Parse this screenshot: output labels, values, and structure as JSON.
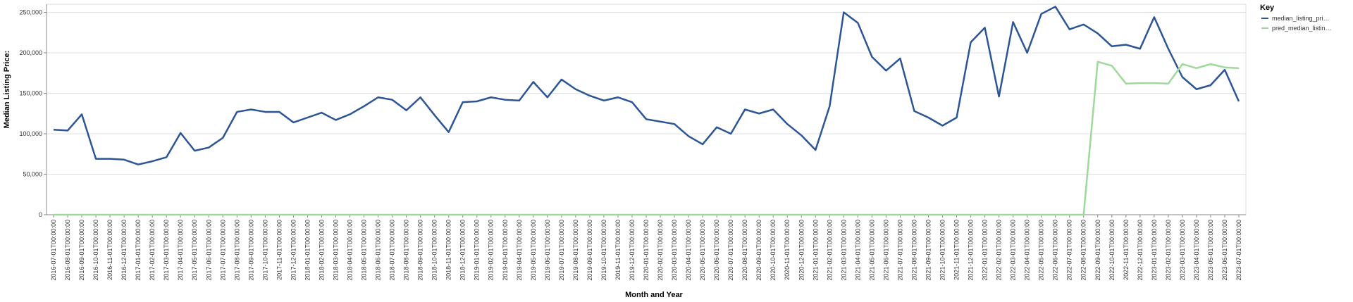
{
  "chart_data": {
    "type": "line",
    "x_label": "Month and Year",
    "y_label": "Median Listing Price:",
    "legend_title": "Key",
    "legend_position": "right",
    "grid": true,
    "categories": [
      "2016-07-01T00:00:00",
      "2016-08-01T00:00:00",
      "2016-09-01T00:00:00",
      "2016-10-01T00:00:00",
      "2016-11-01T00:00:00",
      "2016-12-01T00:00:00",
      "2017-01-01T00:00:00",
      "2017-02-01T00:00:00",
      "2017-03-01T00:00:00",
      "2017-04-01T00:00:00",
      "2017-05-01T00:00:00",
      "2017-06-01T00:00:00",
      "2017-07-01T00:00:00",
      "2017-08-01T00:00:00",
      "2017-09-01T00:00:00",
      "2017-10-01T00:00:00",
      "2017-11-01T00:00:00",
      "2017-12-01T00:00:00",
      "2018-01-01T00:00:00",
      "2018-02-01T00:00:00",
      "2018-03-01T00:00:00",
      "2018-04-01T00:00:00",
      "2018-05-01T00:00:00",
      "2018-06-01T00:00:00",
      "2018-07-01T00:00:00",
      "2018-08-01T00:00:00",
      "2018-09-01T00:00:00",
      "2018-10-01T00:00:00",
      "2018-11-01T00:00:00",
      "2018-12-01T00:00:00",
      "2019-01-01T00:00:00",
      "2019-02-01T00:00:00",
      "2019-03-01T00:00:00",
      "2019-04-01T00:00:00",
      "2019-05-01T00:00:00",
      "2019-06-01T00:00:00",
      "2019-07-01T00:00:00",
      "2019-08-01T00:00:00",
      "2019-09-01T00:00:00",
      "2019-10-01T00:00:00",
      "2019-11-01T00:00:00",
      "2019-12-01T00:00:00",
      "2020-01-01T00:00:00",
      "2020-02-01T00:00:00",
      "2020-03-01T00:00:00",
      "2020-04-01T00:00:00",
      "2020-05-01T00:00:00",
      "2020-06-01T00:00:00",
      "2020-07-01T00:00:00",
      "2020-08-01T00:00:00",
      "2020-09-01T00:00:00",
      "2020-10-01T00:00:00",
      "2020-11-01T00:00:00",
      "2020-12-01T00:00:00",
      "2021-01-01T00:00:00",
      "2021-02-01T00:00:00",
      "2021-03-01T00:00:00",
      "2021-04-01T00:00:00",
      "2021-05-01T00:00:00",
      "2021-06-01T00:00:00",
      "2021-07-01T00:00:00",
      "2021-08-01T00:00:00",
      "2021-09-01T00:00:00",
      "2021-10-01T00:00:00",
      "2021-11-01T00:00:00",
      "2021-12-01T00:00:00",
      "2022-01-01T00:00:00",
      "2022-02-01T00:00:00",
      "2022-03-01T00:00:00",
      "2022-04-01T00:00:00",
      "2022-05-01T00:00:00",
      "2022-06-01T00:00:00",
      "2022-07-01T00:00:00",
      "2022-08-01T00:00:00",
      "2022-09-01T00:00:00",
      "2022-10-01T00:00:00",
      "2022-11-01T00:00:00",
      "2022-12-01T00:00:00",
      "2023-01-01T00:00:00",
      "2023-02-01T00:00:00",
      "2023-03-01T00:00:00",
      "2023-04-01T00:00:00",
      "2023-05-01T00:00:00",
      "2023-06-01T00:00:00",
      "2023-07-01T00:00:00"
    ],
    "series": [
      {
        "name": "median_listing_pri…",
        "color": "#2c5596",
        "values": [
          105000,
          104000,
          124000,
          69000,
          69000,
          68000,
          62000,
          66000,
          71000,
          101000,
          79000,
          83000,
          95000,
          127000,
          130000,
          127000,
          127000,
          114000,
          120000,
          126000,
          117000,
          124000,
          134000,
          145000,
          142000,
          129000,
          145000,
          123000,
          102000,
          139000,
          140000,
          145000,
          142000,
          141000,
          164000,
          145000,
          167000,
          155000,
          147000,
          141000,
          145000,
          139000,
          118000,
          115000,
          112000,
          97000,
          87000,
          108000,
          100000,
          130000,
          125000,
          130000,
          112000,
          98000,
          80000,
          134000,
          250000,
          237000,
          195000,
          178000,
          193000,
          128000,
          120000,
          110000,
          120000,
          213000,
          231000,
          146000,
          238000,
          200000,
          248000,
          257000,
          229000,
          235000,
          224000,
          208000,
          210000,
          205000,
          244000,
          205000,
          170000,
          155000,
          160000,
          179000,
          140000
        ]
      },
      {
        "name": "pred_median_listin…",
        "color": "#9fd99a",
        "values": [
          0,
          0,
          0,
          0,
          0,
          0,
          0,
          0,
          0,
          0,
          0,
          0,
          0,
          0,
          0,
          0,
          0,
          0,
          0,
          0,
          0,
          0,
          0,
          0,
          0,
          0,
          0,
          0,
          0,
          0,
          0,
          0,
          0,
          0,
          0,
          0,
          0,
          0,
          0,
          0,
          0,
          0,
          0,
          0,
          0,
          0,
          0,
          0,
          0,
          0,
          0,
          0,
          0,
          0,
          0,
          0,
          0,
          0,
          0,
          0,
          0,
          0,
          0,
          0,
          0,
          0,
          0,
          0,
          0,
          0,
          0,
          0,
          0,
          0,
          189000,
          184000,
          162000,
          162500,
          162500,
          162000,
          186000,
          181000,
          186000,
          182000,
          181000
        ]
      }
    ],
    "ylim": [
      0,
      260000
    ],
    "yticks": [
      0,
      {
        "value": 50000,
        "label": "50,000"
      },
      {
        "value": 100000,
        "label": "100,000"
      },
      {
        "value": 150000,
        "label": "150,000"
      },
      {
        "value": 200000,
        "label": "200,000"
      },
      {
        "value": 250000,
        "label": "250,000"
      }
    ]
  }
}
